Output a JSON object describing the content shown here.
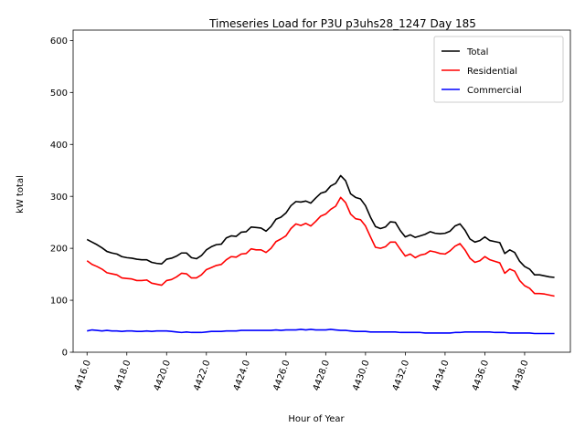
{
  "chart_data": {
    "type": "line",
    "title": "Timeseries Load for P3U p3uhs28_1247  Day 185",
    "xlabel": "Hour of Year",
    "ylabel": "kW total",
    "xlim": [
      4415.3,
      4440.3
    ],
    "ylim": [
      0,
      620
    ],
    "x_ticks": [
      4416,
      4418,
      4420,
      4422,
      4424,
      4426,
      4428,
      4430,
      4432,
      4434,
      4436,
      4438
    ],
    "x_tick_labels": [
      "4416.0",
      "4418.0",
      "4420.0",
      "4422.0",
      "4424.0",
      "4426.0",
      "4428.0",
      "4430.0",
      "4432.0",
      "4434.0",
      "4436.0",
      "4438.0"
    ],
    "y_ticks": [
      0,
      100,
      200,
      300,
      400,
      500,
      600
    ],
    "y_tick_labels": [
      "0",
      "100",
      "200",
      "300",
      "400",
      "500",
      "600"
    ],
    "legend_position": "top-right",
    "x_start": 4416.0,
    "x_step": 0.25,
    "series": [
      {
        "name": "Total",
        "color": "#000000",
        "values": [
          217,
          212,
          207,
          201,
          194,
          191,
          189,
          184,
          182,
          181,
          179,
          178,
          178,
          173,
          171,
          170,
          179,
          181,
          185,
          191,
          191,
          182,
          180,
          186,
          197,
          203,
          207,
          208,
          220,
          224,
          223,
          231,
          232,
          241,
          240,
          239,
          233,
          242,
          256,
          260,
          268,
          282,
          290,
          289,
          291,
          287,
          297,
          306,
          309,
          320,
          325,
          340,
          330,
          305,
          298,
          295,
          282,
          260,
          242,
          238,
          241,
          251,
          250,
          234,
          222,
          226,
          221,
          224,
          227,
          232,
          229,
          228,
          229,
          233,
          243,
          247,
          235,
          218,
          212,
          215,
          222,
          215,
          213,
          211,
          190,
          197,
          192,
          175,
          165,
          160,
          149,
          149,
          147,
          145,
          144
        ]
      },
      {
        "name": "Residential",
        "color": "#ff0000",
        "values": [
          176,
          169,
          165,
          160,
          153,
          151,
          149,
          143,
          142,
          141,
          138,
          138,
          139,
          133,
          131,
          129,
          138,
          140,
          145,
          152,
          151,
          143,
          143,
          149,
          159,
          163,
          167,
          169,
          178,
          184,
          183,
          189,
          190,
          199,
          197,
          197,
          192,
          200,
          213,
          218,
          224,
          238,
          247,
          244,
          248,
          243,
          252,
          262,
          266,
          275,
          281,
          298,
          288,
          266,
          257,
          255,
          243,
          222,
          202,
          200,
          203,
          212,
          212,
          198,
          185,
          189,
          182,
          187,
          189,
          195,
          193,
          190,
          189,
          195,
          204,
          209,
          197,
          181,
          173,
          176,
          184,
          178,
          175,
          172,
          152,
          160,
          156,
          138,
          128,
          123,
          113,
          113,
          112,
          110,
          108
        ]
      },
      {
        "name": "Commercial",
        "color": "#0000ff",
        "values": [
          41,
          43,
          42,
          41,
          42,
          41,
          41,
          40,
          41,
          41,
          40,
          40,
          41,
          40,
          41,
          41,
          41,
          40,
          39,
          38,
          39,
          38,
          38,
          38,
          39,
          40,
          40,
          40,
          41,
          41,
          41,
          42,
          42,
          42,
          42,
          42,
          42,
          42,
          43,
          42,
          43,
          43,
          43,
          44,
          43,
          44,
          43,
          43,
          43,
          44,
          43,
          42,
          42,
          41,
          40,
          40,
          40,
          39,
          39,
          39,
          39,
          39,
          39,
          38,
          38,
          38,
          38,
          38,
          37,
          37,
          37,
          37,
          37,
          37,
          38,
          38,
          39,
          39,
          39,
          39,
          39,
          39,
          38,
          38,
          38,
          37,
          37,
          37,
          37,
          37,
          36,
          36,
          36,
          36,
          36
        ]
      }
    ]
  }
}
